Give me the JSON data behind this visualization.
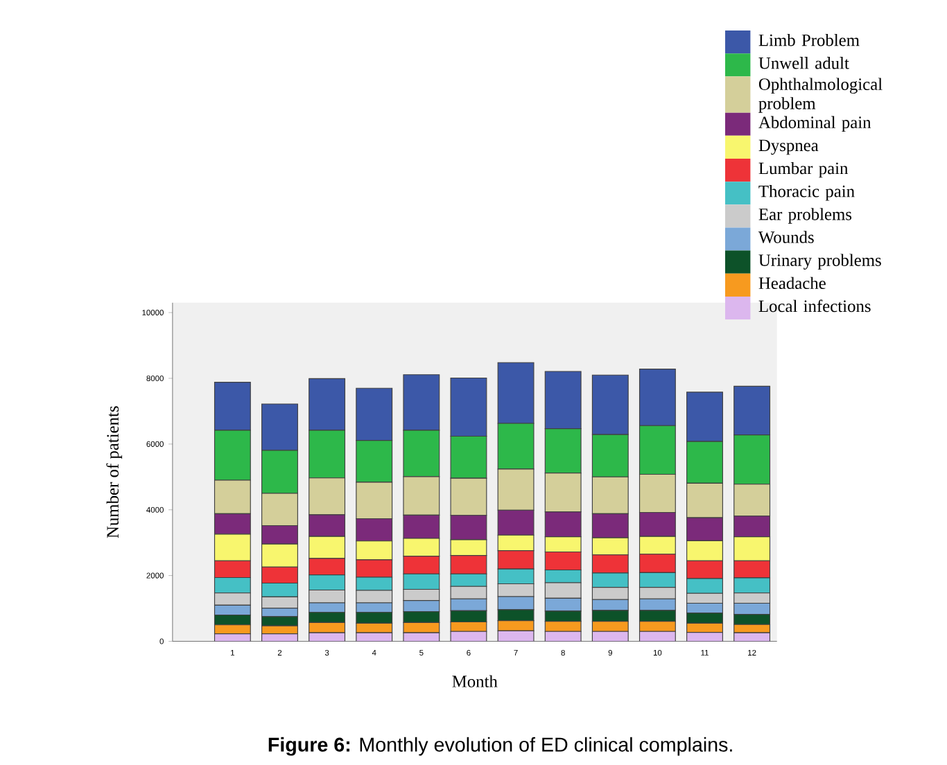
{
  "chart_data": {
    "type": "bar",
    "stacked": true,
    "xlabel": "Month",
    "ylabel": "Number of patients",
    "annotations": [
      "**Figure 6:** Monthly evolution of ED clinical complains."
    ],
    "categories": [
      "1",
      "2",
      "3",
      "4",
      "5",
      "6",
      "7",
      "8",
      "9",
      "10",
      "11",
      "12"
    ],
    "ylim": [
      0,
      10300
    ],
    "yticks": [
      0,
      2000,
      4000,
      6000,
      8000,
      10000
    ],
    "legend": "top right",
    "grid": false,
    "series": [
      {
        "name": "Local infections",
        "color": "#dcb7ee",
        "values": [
          230,
          230,
          260,
          260,
          260,
          300,
          320,
          300,
          300,
          300,
          270,
          260
        ]
      },
      {
        "name": "Headache",
        "color": "#f79a1f",
        "values": [
          270,
          240,
          310,
          290,
          310,
          290,
          310,
          310,
          310,
          310,
          280,
          250
        ]
      },
      {
        "name": "Urinary problems",
        "color": "#0d5229",
        "values": [
          300,
          280,
          310,
          330,
          330,
          340,
          330,
          310,
          330,
          330,
          310,
          310
        ]
      },
      {
        "name": "Wounds",
        "color": "#7ba8d8",
        "values": [
          300,
          260,
          290,
          290,
          340,
          360,
          400,
          390,
          330,
          350,
          300,
          340
        ]
      },
      {
        "name": "Ear problems",
        "color": "#cbcbcb",
        "values": [
          370,
          340,
          390,
          380,
          340,
          380,
          390,
          470,
          370,
          350,
          300,
          310
        ]
      },
      {
        "name": "Thoracic pain",
        "color": "#45c0c5",
        "values": [
          470,
          420,
          460,
          400,
          470,
          380,
          450,
          390,
          440,
          450,
          450,
          460
        ]
      },
      {
        "name": "Lumbar pain",
        "color": "#ee3338",
        "values": [
          510,
          490,
          500,
          530,
          540,
          560,
          560,
          550,
          550,
          560,
          540,
          520
        ]
      },
      {
        "name": "Dyspnea",
        "color": "#f8f66e",
        "values": [
          810,
          700,
          670,
          570,
          540,
          480,
          470,
          460,
          520,
          540,
          610,
          730
        ]
      },
      {
        "name": "Abdominal pain",
        "color": "#7b2a7a",
        "values": [
          620,
          560,
          660,
          680,
          710,
          740,
          760,
          760,
          730,
          730,
          700,
          630
        ]
      },
      {
        "name": "Ophthalmological problem",
        "color": "#d4cf9a",
        "values": [
          1020,
          980,
          1120,
          1110,
          1170,
          1130,
          1250,
          1180,
          1120,
          1160,
          1050,
          970
        ]
      },
      {
        "name": "Unwell adult",
        "color": "#2db84a",
        "values": [
          1520,
          1310,
          1450,
          1270,
          1410,
          1280,
          1390,
          1350,
          1290,
          1480,
          1270,
          1500
        ]
      },
      {
        "name": "Limb Problem",
        "color": "#3c58a8",
        "values": [
          1460,
          1410,
          1570,
          1590,
          1690,
          1770,
          1850,
          1740,
          1810,
          1720,
          1500,
          1480
        ]
      }
    ]
  }
}
